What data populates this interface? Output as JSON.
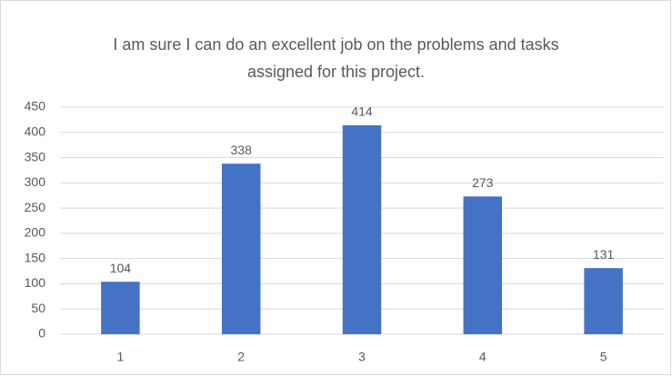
{
  "chart_data": {
    "type": "bar",
    "title": "I am sure I can do an excellent job on the problems and tasks assigned for this project.",
    "categories": [
      "1",
      "2",
      "3",
      "4",
      "5"
    ],
    "values": [
      104,
      338,
      414,
      273,
      131
    ],
    "color": "#4472c4",
    "ylim": [
      0,
      450
    ],
    "yticks": [
      0,
      50,
      100,
      150,
      200,
      250,
      300,
      350,
      400,
      450
    ],
    "grid": true
  }
}
